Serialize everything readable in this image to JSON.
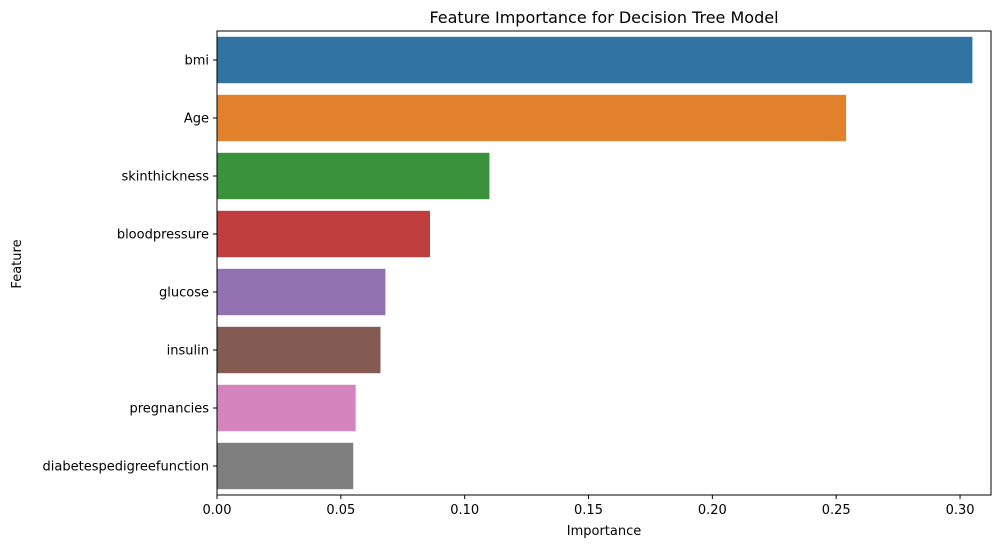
{
  "chart_data": {
    "type": "bar",
    "orientation": "horizontal",
    "title": "Feature Importance for Decision Tree Model",
    "xlabel": "Importance",
    "ylabel": "Feature",
    "xlim": [
      0,
      0.3125
    ],
    "xticks": [
      0.0,
      0.05,
      0.1,
      0.15,
      0.2,
      0.25,
      0.3
    ],
    "xtick_labels": [
      "0.00",
      "0.05",
      "0.10",
      "0.15",
      "0.20",
      "0.25",
      "0.30"
    ],
    "categories": [
      "bmi",
      "Age",
      "skinthickness",
      "bloodpressure",
      "glucose",
      "insulin",
      "pregnancies",
      "diabetespedigreefunction"
    ],
    "values": [
      0.305,
      0.254,
      0.11,
      0.086,
      0.068,
      0.066,
      0.056,
      0.055
    ],
    "colors": [
      "#3274a1",
      "#e1812c",
      "#3a923a",
      "#c03d3e",
      "#9372b2",
      "#845b53",
      "#d684bd",
      "#7f7f7f"
    ],
    "grid": false,
    "legend": "none"
  }
}
